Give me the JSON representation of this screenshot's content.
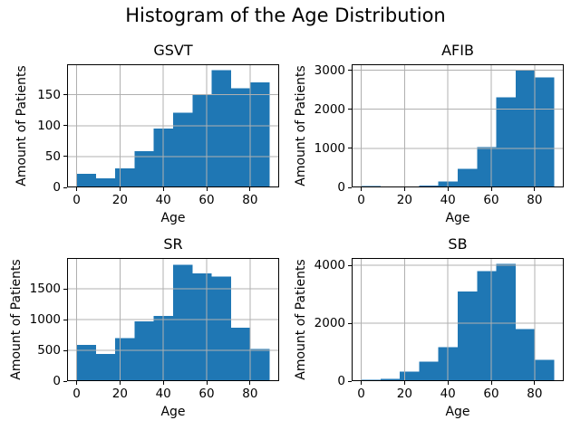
{
  "figure": {
    "title": "Histogram of the Age Distribution",
    "background_color": "#ffffff",
    "bar_color": "#1f77b4",
    "grid_color": "#b0b0b0",
    "spine_color": "#000000",
    "text_color": "#000000"
  },
  "chart_data": [
    {
      "type": "bar",
      "subtype": "histogram",
      "title": "GSVT",
      "xlabel": "Age",
      "ylabel": "Amount of Patients",
      "bin_edges": [
        0,
        8.9,
        17.8,
        26.7,
        35.6,
        44.5,
        53.4,
        62.3,
        71.2,
        80.1,
        89
      ],
      "values": [
        22,
        15,
        31,
        59,
        95,
        121,
        150,
        190,
        161,
        170
      ],
      "xticks": [
        0,
        20,
        40,
        60,
        80
      ],
      "yticks": [
        0,
        50,
        100,
        150
      ],
      "xlim": [
        -4.45,
        93.45
      ],
      "ylim": [
        0,
        199.5
      ],
      "grid": true,
      "legend": false
    },
    {
      "type": "bar",
      "subtype": "histogram",
      "title": "AFIB",
      "xlabel": "Age",
      "ylabel": "Amount of Patients",
      "bin_edges": [
        0,
        8.9,
        17.8,
        26.7,
        35.6,
        44.5,
        53.4,
        62.3,
        71.2,
        80.1,
        89
      ],
      "values": [
        30,
        8,
        20,
        50,
        145,
        480,
        1030,
        2300,
        3000,
        2820
      ],
      "xticks": [
        0,
        20,
        40,
        60,
        80
      ],
      "yticks": [
        0,
        1000,
        2000,
        3000
      ],
      "xlim": [
        -4.45,
        93.45
      ],
      "ylim": [
        0,
        3150
      ],
      "grid": true,
      "legend": false
    },
    {
      "type": "bar",
      "subtype": "histogram",
      "title": "SR",
      "xlabel": "Age",
      "ylabel": "Amount of Patients",
      "bin_edges": [
        0,
        8.9,
        17.8,
        26.7,
        35.6,
        44.5,
        53.4,
        62.3,
        71.2,
        80.1,
        89
      ],
      "values": [
        590,
        440,
        700,
        970,
        1060,
        1890,
        1750,
        1700,
        870,
        520
      ],
      "xticks": [
        0,
        20,
        40,
        60,
        80
      ],
      "yticks": [
        0,
        500,
        1000,
        1500
      ],
      "xlim": [
        -4.45,
        93.45
      ],
      "ylim": [
        0,
        2000
      ],
      "grid": true,
      "legend": false
    },
    {
      "type": "bar",
      "subtype": "histogram",
      "title": "SB",
      "xlabel": "Age",
      "ylabel": "Amount of Patients",
      "bin_edges": [
        0,
        8.9,
        17.8,
        26.7,
        35.6,
        44.5,
        53.4,
        62.3,
        71.2,
        80.1,
        89
      ],
      "values": [
        40,
        85,
        330,
        670,
        1170,
        3100,
        3800,
        4050,
        1800,
        740
      ],
      "xticks": [
        0,
        20,
        40,
        60,
        80
      ],
      "yticks": [
        0,
        2000,
        4000
      ],
      "xlim": [
        -4.45,
        93.45
      ],
      "ylim": [
        0,
        4253
      ],
      "grid": true,
      "legend": false
    }
  ]
}
